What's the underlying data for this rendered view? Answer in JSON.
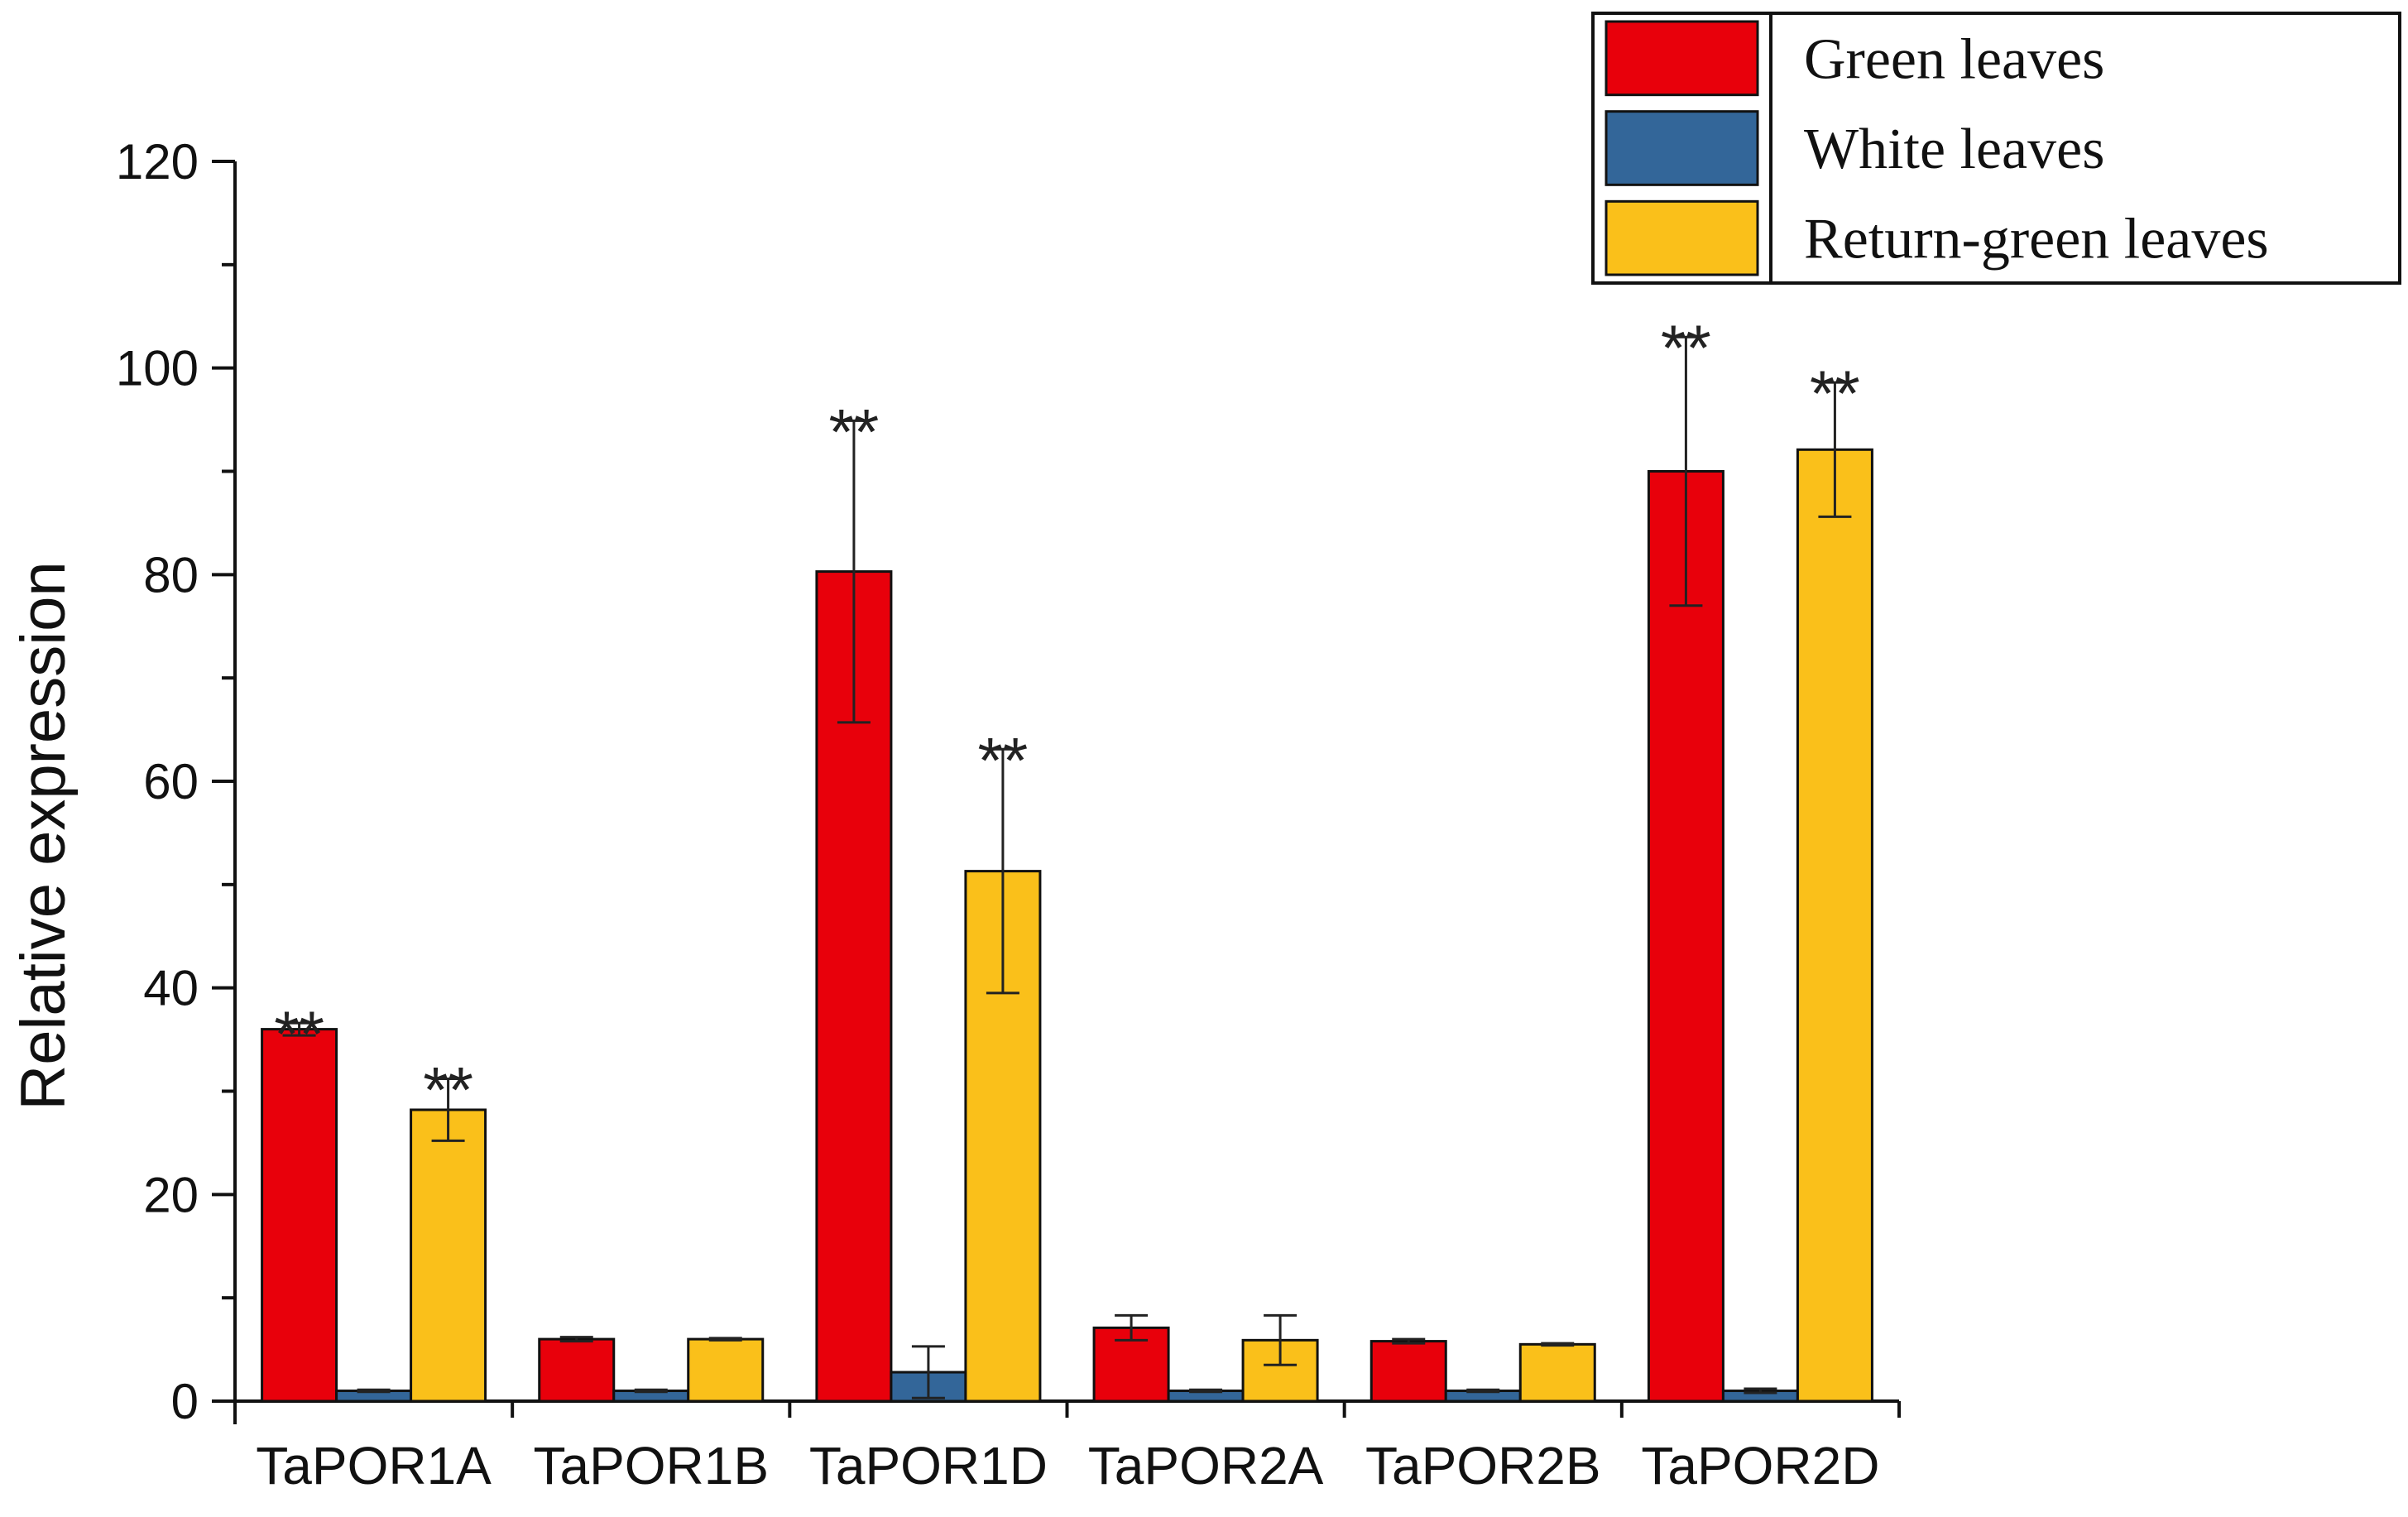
{
  "chart_data": {
    "type": "bar",
    "ylabel": "Relative expression",
    "xlabel": "",
    "ylim": [
      0,
      120
    ],
    "yticks": [
      0,
      20,
      40,
      60,
      80,
      100,
      120
    ],
    "grid": false,
    "legend_position": "top-right",
    "categories": [
      "TaPOR1A",
      "TaPOR1B",
      "TaPOR1D",
      "TaPOR2A",
      "TaPOR2B",
      "TaPOR2D"
    ],
    "series": [
      {
        "name": "Green leaves",
        "color": "#e8000b",
        "values": [
          36,
          6,
          80.3,
          7.1,
          5.8,
          90
        ],
        "errors": [
          0.6,
          0.2,
          14.6,
          1.2,
          0.2,
          13
        ],
        "significance": [
          "**",
          "",
          "**",
          "",
          "",
          "**"
        ]
      },
      {
        "name": "White leaves",
        "color": "#336699",
        "values": [
          1,
          1,
          2.8,
          1,
          1,
          1
        ],
        "errors": [
          0.1,
          0.1,
          2.5,
          0.1,
          0.1,
          0.2
        ],
        "significance": [
          "",
          "",
          "",
          "",
          "",
          ""
        ]
      },
      {
        "name": "Return-green leaves",
        "color": "#fac01a",
        "values": [
          28.2,
          6,
          51.3,
          5.9,
          5.5,
          92.1
        ],
        "errors": [
          3,
          0.1,
          11.8,
          2.4,
          0.1,
          6.5
        ],
        "significance": [
          "**",
          "",
          "**",
          "",
          "",
          "**"
        ]
      }
    ]
  }
}
